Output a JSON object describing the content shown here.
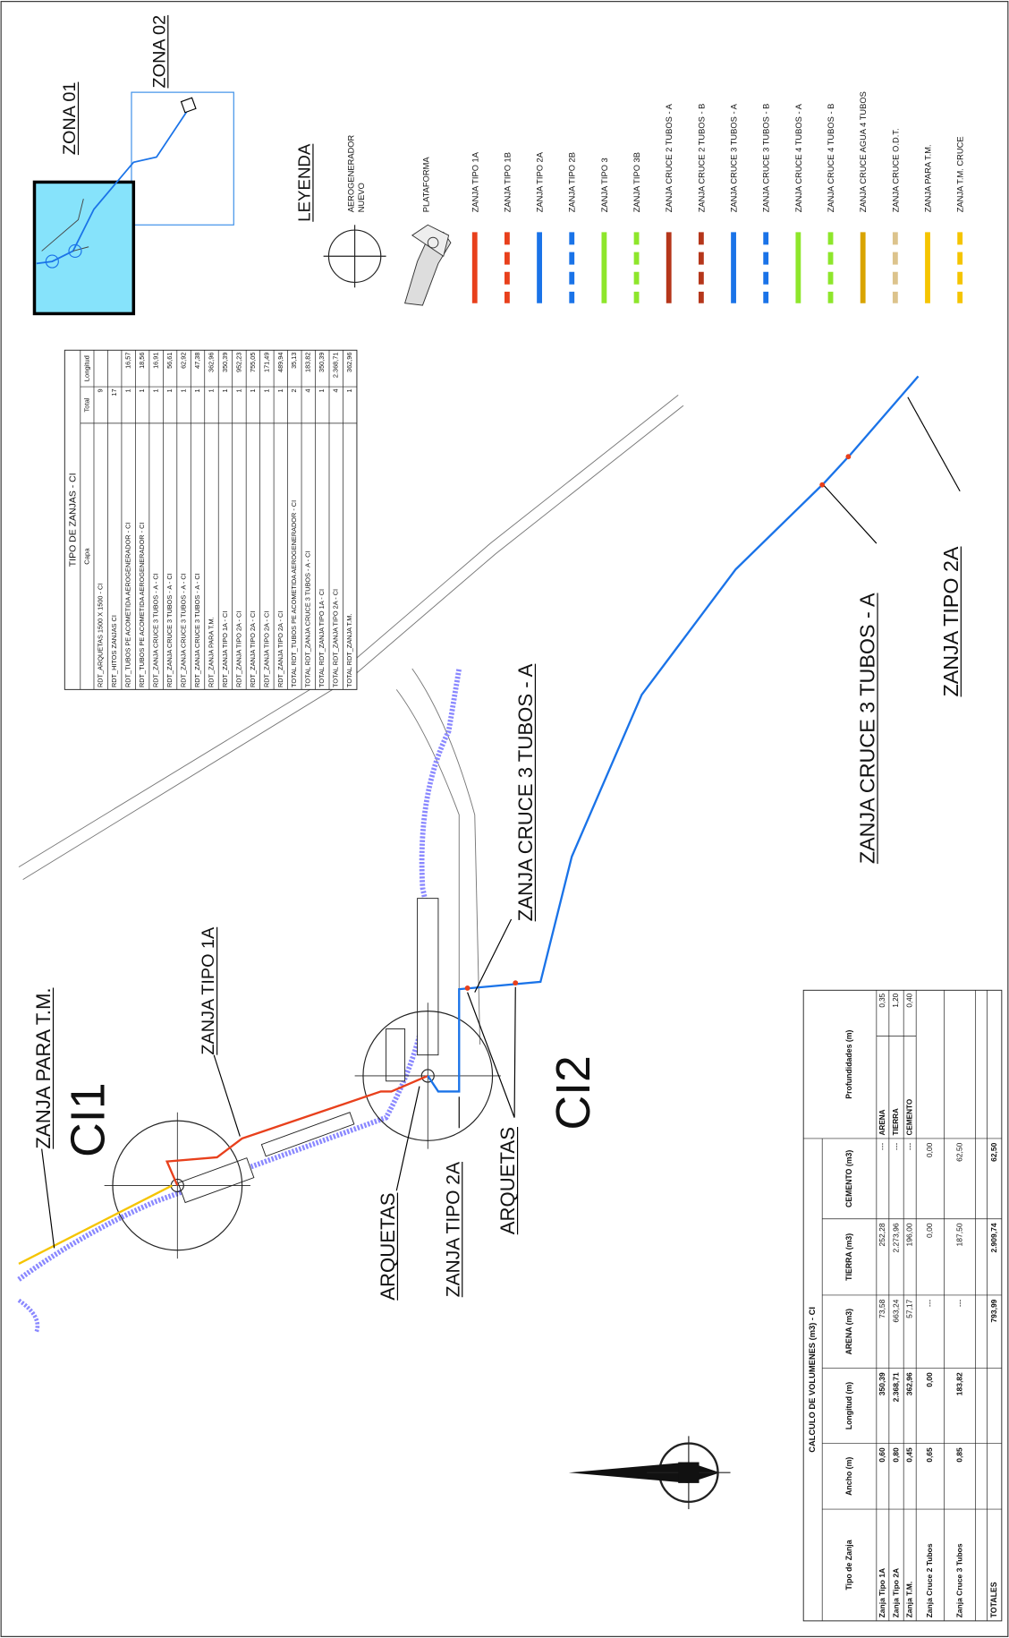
{
  "zones": {
    "zone_01": "ZONA 01",
    "zone_02": "ZONA 02"
  },
  "legend": {
    "title": "LEYENDA",
    "wind_turbine": [
      "AEROGENERADOR",
      "NUEVO"
    ],
    "platform": "PLATAFORMA",
    "trenches": [
      {
        "label": "ZANJA TIPO 1A",
        "color": "#e8401c",
        "dashed": false
      },
      {
        "label": "ZANJA TIPO 1B",
        "color": "#e8401c",
        "dashed": true
      },
      {
        "label": "ZANJA TIPO 2A",
        "color": "#1a73e8",
        "dashed": false
      },
      {
        "label": "ZANJA TIPO 2B",
        "color": "#1a73e8",
        "dashed": true
      },
      {
        "label": "ZANJA TIPO 3",
        "color": "#8ee62b",
        "dashed": false
      },
      {
        "label": "ZANJA TIPO 3B",
        "color": "#8ee62b",
        "dashed": true
      },
      {
        "label": "ZANJA CRUCE 2 TUBOS - A",
        "color": "#b5361a",
        "dashed": false
      },
      {
        "label": "ZANJA CRUCE 2 TUBOS - B",
        "color": "#b5361a",
        "dashed": true
      },
      {
        "label": "ZANJA CRUCE 3 TUBOS - A",
        "color": "#1a73e8",
        "dashed": false
      },
      {
        "label": "ZANJA CRUCE 3 TUBOS - B",
        "color": "#1a73e8",
        "dashed": true
      },
      {
        "label": "ZANJA CRUCE 4 TUBOS - A",
        "color": "#8ee62b",
        "dashed": false
      },
      {
        "label": "ZANJA CRUCE 4 TUBOS - B",
        "color": "#8ee62b",
        "dashed": true
      },
      {
        "label": "ZANJA CRUCE AGUA 4 TUBOS",
        "color": "#d9a400",
        "dashed": false
      },
      {
        "label": "ZANJA CRUCE O.D.T.",
        "color": "#dcc38c",
        "dashed": true
      },
      {
        "label": "ZANJA PARA T.M.",
        "color": "#f5c400",
        "dashed": false
      },
      {
        "label": "ZANJA T.M. CRUCE",
        "color": "#f5c400",
        "dashed": true
      }
    ]
  },
  "map_labels": [
    "ZANJA PARA T.M.",
    "CI1",
    "ZANJA TIPO 1A",
    "ZANJA CRUCE 3 TUBOS - A",
    "CI2",
    "ARQUETAS",
    "ZANJA TIPO 2A",
    "ARQUETAS",
    "ZANJA CRUCE 3 TUBOS - A",
    "ZANJA TIPO 2A"
  ],
  "trench_table": {
    "title": "TIPO DE ZANJAS - CI",
    "columns": [
      "Capa",
      "Total",
      "Longitud"
    ],
    "rows": [
      [
        "RDT_ARQUETAS 1500 X 1500 - CI",
        "9"
      ],
      [
        "RDT_HITOS ZANJAS CI",
        "17"
      ],
      [
        "RDT_TUBOS PE ACOMETIDA AEROGENERADOR - CI",
        "1",
        "16,57"
      ],
      [
        "RDT_TUBOS PE ACOMETIDA AEROGENERADOR - CI",
        "1",
        "18,56"
      ],
      [
        "RDT_ZANJA CRUCE 3 TUBOS - A - CI",
        "1",
        "16,91"
      ],
      [
        "RDT_ZANJA CRUCE 3 TUBOS - A - CI",
        "1",
        "56,61"
      ],
      [
        "RDT_ZANJA CRUCE 3 TUBOS - A - CI",
        "1",
        "62,92"
      ],
      [
        "RDT_ZANJA CRUCE 3 TUBOS - A - CI",
        "1",
        "47,38"
      ],
      [
        "RDT_ZANJA PARA T.M.",
        "1",
        "362,96"
      ],
      [
        "RDT_ZANJA TIPO 1A - CI",
        "1",
        "350,39"
      ],
      [
        "RDT_ZANJA TIPO 2A - CI",
        "1",
        "952,23"
      ],
      [
        "RDT_ZANJA TIPO 2A - CI",
        "1",
        "755,05"
      ],
      [
        "RDT_ZANJA TIPO 2A - CI",
        "1",
        "171,49"
      ],
      [
        "RDT_ZANJA TIPO 2A - CI",
        "1",
        "489,94"
      ],
      [
        "TOTAL RDT_TUBOS PE ACOMETIDA AEROGENERADOR - CI",
        "2",
        "35,13"
      ],
      [
        "TOTAL RDT_ZANJA CRUCE 3 TUBOS - A - CI",
        "4",
        "183,82"
      ],
      [
        "TOTAL RDT_ZANJA TIPO 1A - CI",
        "1",
        "350,39"
      ],
      [
        "TOTAL RDT_ZANJA TIPO 2A - CI",
        "4",
        "2.368,71"
      ],
      [
        "TOTAL RDT_ZANJA T.M.",
        "1",
        "362,96"
      ]
    ]
  },
  "volume_table": {
    "title": "CALCULO DE VOLUMENES (m3) - CI",
    "columns": [
      "Tipo de Zanja",
      "Ancho (m)",
      "Longitud (m)",
      "ARENA (m3)",
      "TIERRA (m3)",
      "CEMENTO (m3)",
      "Profundidades (m)"
    ],
    "rows": [
      [
        "Zanja Tipo 1A",
        "0,60",
        "350,39",
        "73,58",
        "252,28",
        "---"
      ],
      [
        "Zanja Tipo 2A",
        "0,80",
        "2.368,71",
        "663,24",
        "2.273,96",
        "---"
      ],
      [
        "Zanja T.M.",
        "0,45",
        "362,96",
        "57,17",
        "196,00",
        "---"
      ],
      [
        "Zanja Cruce 2 Tubos",
        "0,65",
        "0,00",
        "---",
        "0,00",
        "0,00"
      ],
      [
        "Zanja Cruce 3 Tubos",
        "0,85",
        "183,82",
        "---",
        "187,50",
        "62,50"
      ]
    ],
    "totals": {
      "label": "TOTALES",
      "values": [
        "793,99",
        "2.909,74",
        "62,50"
      ]
    },
    "depths": [
      [
        "ARENA",
        "0,35"
      ],
      [
        "TIERRA",
        "1,20"
      ],
      [
        "CEMENTO",
        "0,40"
      ]
    ]
  }
}
